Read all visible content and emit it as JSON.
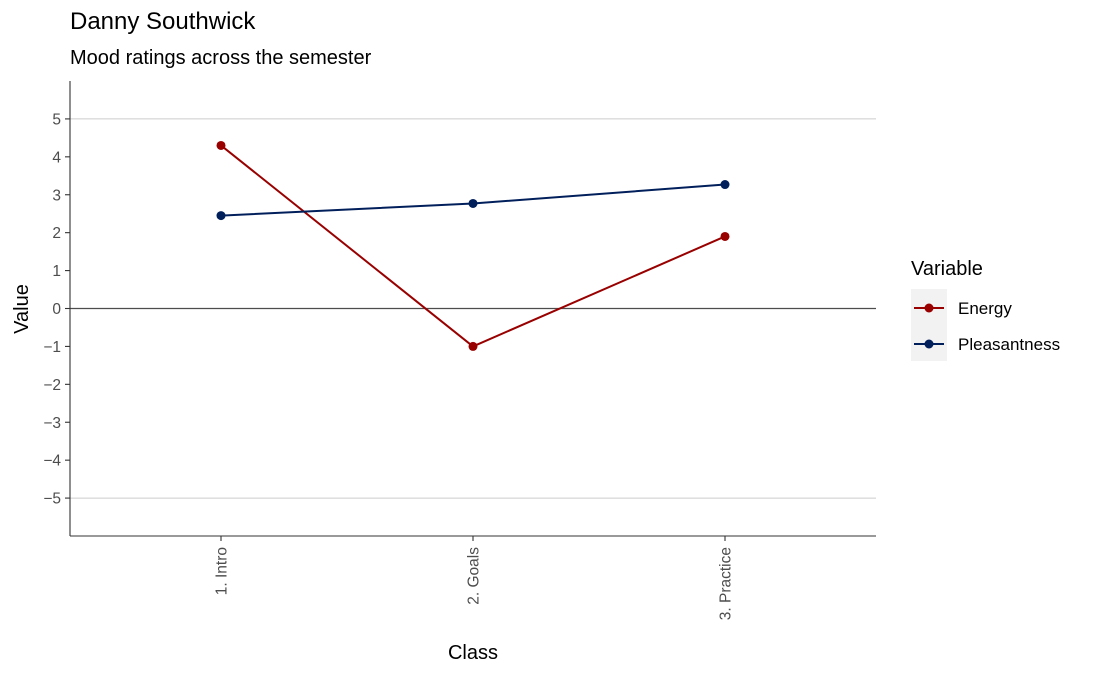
{
  "chart_data": {
    "type": "line",
    "title": "Danny Southwick",
    "subtitle": "Mood ratings across the semester",
    "xlabel": "Class",
    "ylabel": "Value",
    "categories": [
      "1. Intro",
      "2. Goals",
      "3. Practice"
    ],
    "y_ticks": [
      5,
      4,
      3,
      2,
      1,
      0,
      -1,
      -2,
      -3,
      -4,
      -5
    ],
    "y_tick_labels": [
      "5",
      "4",
      "3",
      "2",
      "1",
      "0",
      "−1",
      "−2",
      "−3",
      "−4",
      "−5"
    ],
    "ylim": [
      -6,
      6
    ],
    "gridlines_y": [
      5,
      -5
    ],
    "reference_line_y": 0,
    "legend": {
      "title": "Variable",
      "position": "right"
    },
    "series": [
      {
        "name": "Energy",
        "color": "#990000",
        "values": [
          4.3,
          -1.0,
          1.9
        ]
      },
      {
        "name": "Pleasantness",
        "color": "#011F5B",
        "values": [
          2.45,
          2.77,
          3.27
        ]
      }
    ]
  }
}
